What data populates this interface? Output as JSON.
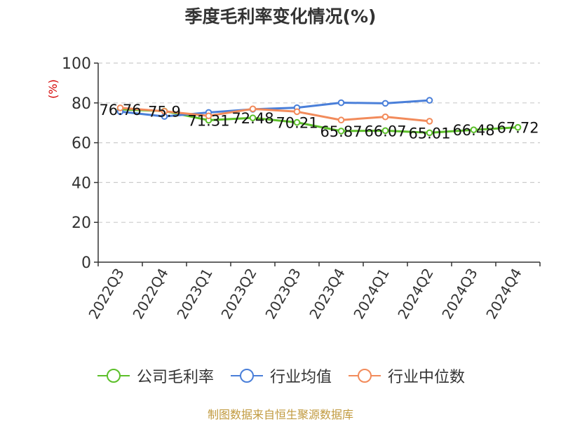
{
  "title": "季度毛利率变化情况(%)",
  "source": "制图数据来自恒生聚源数据库",
  "colors": {
    "company": "#5cbf2a",
    "industry_avg": "#4a7fd9",
    "industry_median": "#f28b5b",
    "grid": "#cccccc",
    "axis": "#333333",
    "unit": "#d40000"
  },
  "chart_data": {
    "type": "line",
    "ylabel": "(%)",
    "ylim": [
      0,
      100
    ],
    "yticks": [
      0,
      20,
      40,
      60,
      80,
      100
    ],
    "grid": true,
    "legend_position": "bottom",
    "categories": [
      "2022Q3",
      "2022Q4",
      "2023Q1",
      "2023Q2",
      "2023Q3",
      "2023Q4",
      "2024Q1",
      "2024Q2",
      "2024Q3",
      "2024Q4"
    ],
    "series": [
      {
        "name": "公司毛利率",
        "key": "company",
        "values": [
          76.76,
          75.9,
          71.31,
          72.48,
          70.21,
          65.87,
          66.07,
          65.01,
          66.48,
          67.72
        ],
        "labels": [
          "76.76",
          "75.9",
          "71.31",
          "72.48",
          "70.21",
          "65.87",
          "66.07",
          "65.01",
          "66.48",
          "67.72"
        ]
      },
      {
        "name": "行业均值",
        "key": "industry_avg",
        "values": [
          75.6,
          73.2,
          75.2,
          76.8,
          77.6,
          80.1,
          79.8,
          81.3,
          null,
          null
        ]
      },
      {
        "name": "行业中位数",
        "key": "industry_median",
        "values": [
          77.5,
          75.8,
          73.5,
          77.0,
          75.6,
          71.4,
          73.0,
          70.8,
          null,
          null
        ]
      }
    ]
  }
}
